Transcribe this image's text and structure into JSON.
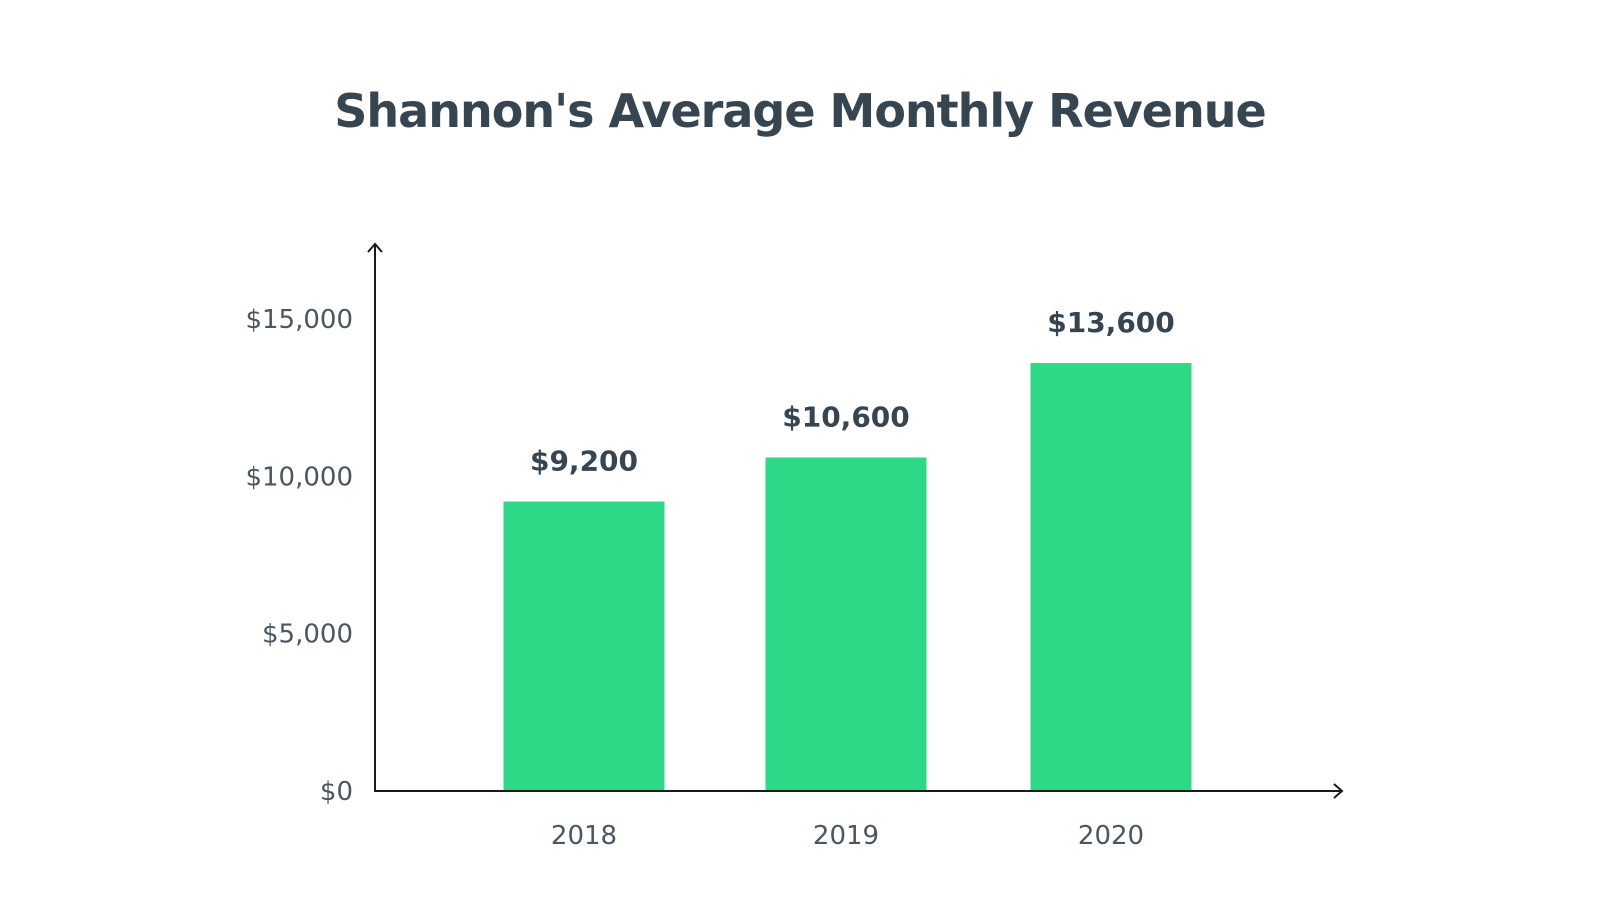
{
  "chart_data": {
    "type": "bar",
    "title": "Shannon's Average Monthly Revenue",
    "categories": [
      "2018",
      "2019",
      "2020"
    ],
    "values": [
      9200,
      10600,
      13600
    ],
    "value_labels": [
      "$9,200",
      "$10,600",
      "$13,600"
    ],
    "yticks": [
      0,
      5000,
      10000,
      15000
    ],
    "ytick_labels": [
      "$0",
      "$5,000",
      "$10,000",
      "$15,000"
    ],
    "ylim": [
      0,
      17500
    ],
    "xlabel": "",
    "ylabel": "",
    "grid": false,
    "bar_color": "#2ed886",
    "axis_color": "#1a1a1a",
    "text_color": "#36454f"
  }
}
